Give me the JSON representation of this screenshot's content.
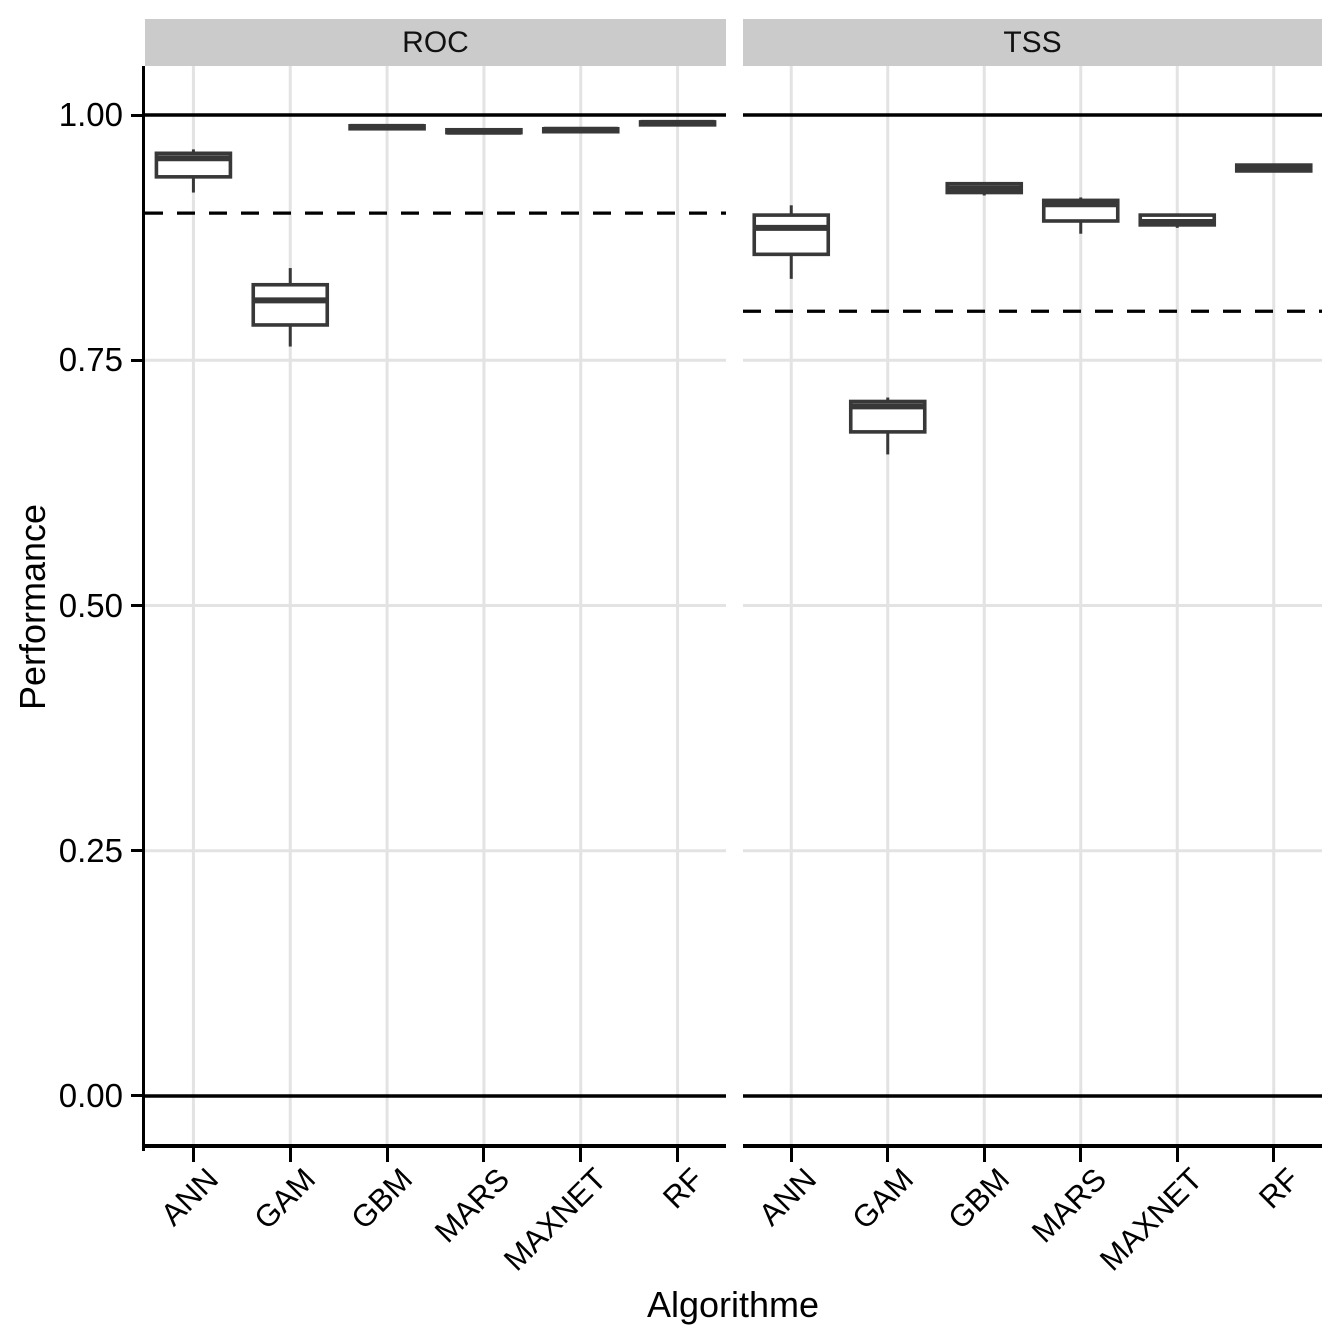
{
  "chart_data": {
    "type": "boxplot",
    "title": "",
    "xlabel": "Algorithme",
    "ylabel": "Performance",
    "ylim": [
      -0.05,
      1.05
    ],
    "grid": "major-only",
    "y_ticks": [
      {
        "label": "0.00",
        "value": 0.0
      },
      {
        "label": "0.25",
        "value": 0.25
      },
      {
        "label": "0.50",
        "value": 0.5
      },
      {
        "label": "0.75",
        "value": 0.75
      },
      {
        "label": "1.00",
        "value": 1.0
      }
    ],
    "solid_reflines": [
      0.0,
      1.0
    ],
    "categories": [
      "ANN",
      "GAM",
      "GBM",
      "MARS",
      "MAXNET",
      "RF"
    ],
    "facets": [
      {
        "label": "ROC",
        "dashed_refline": 0.9,
        "boxes": [
          {
            "category": "ANN",
            "whislo": 0.921,
            "q1": 0.937,
            "med": 0.956,
            "q3": 0.961,
            "whishi": 0.965
          },
          {
            "category": "GAM",
            "whislo": 0.764,
            "q1": 0.786,
            "med": 0.811,
            "q3": 0.827,
            "whishi": 0.844
          },
          {
            "category": "GBM",
            "whislo": 0.985,
            "q1": 0.986,
            "med": 0.988,
            "q3": 0.989,
            "whishi": 0.99
          },
          {
            "category": "MARS",
            "whislo": 0.981,
            "q1": 0.982,
            "med": 0.983,
            "q3": 0.985,
            "whishi": 0.986
          },
          {
            "category": "MAXNET",
            "whislo": 0.982,
            "q1": 0.983,
            "med": 0.985,
            "q3": 0.986,
            "whishi": 0.987
          },
          {
            "category": "RF",
            "whislo": 0.989,
            "q1": 0.99,
            "med": 0.992,
            "q3": 0.993,
            "whishi": 0.994
          }
        ]
      },
      {
        "label": "TSS",
        "dashed_refline": 0.8,
        "boxes": [
          {
            "category": "ANN",
            "whislo": 0.833,
            "q1": 0.858,
            "med": 0.885,
            "q3": 0.898,
            "whishi": 0.908
          },
          {
            "category": "GAM",
            "whislo": 0.654,
            "q1": 0.677,
            "med": 0.703,
            "q3": 0.708,
            "whishi": 0.712
          },
          {
            "category": "GBM",
            "whislo": 0.918,
            "q1": 0.921,
            "med": 0.925,
            "q3": 0.93,
            "whishi": 0.931
          },
          {
            "category": "MARS",
            "whislo": 0.879,
            "q1": 0.892,
            "med": 0.909,
            "q3": 0.913,
            "whishi": 0.916
          },
          {
            "category": "MAXNET",
            "whislo": 0.885,
            "q1": 0.888,
            "med": 0.891,
            "q3": 0.898,
            "whishi": 0.898
          },
          {
            "category": "RF",
            "whislo": 0.942,
            "q1": 0.943,
            "med": 0.946,
            "q3": 0.949,
            "whishi": 0.95
          }
        ]
      }
    ],
    "colors": {
      "box_stroke": "#383838",
      "box_fill": "#ffffff",
      "gridline": "#e3e3e3",
      "strip_bg": "#cbcbcb",
      "refline": "#000000",
      "background": "#ffffff"
    }
  }
}
